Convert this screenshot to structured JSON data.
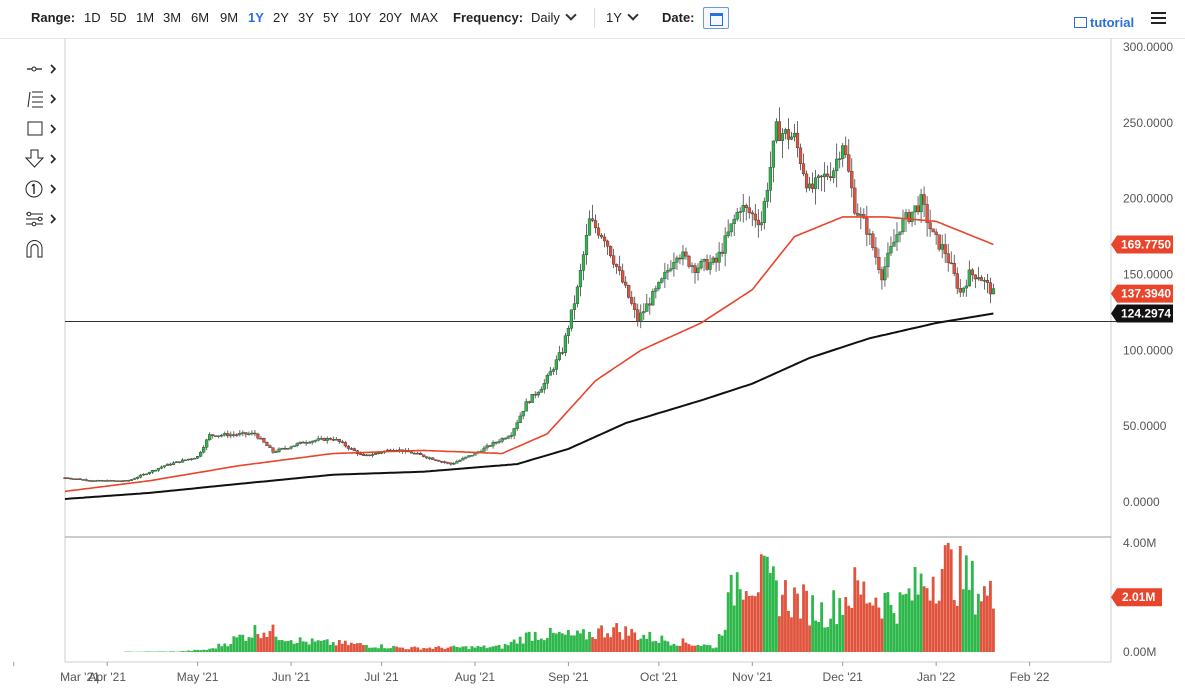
{
  "toolbar": {
    "range_label": "Range:",
    "ranges": [
      "1D",
      "5D",
      "1M",
      "3M",
      "6M",
      "9M",
      "1Y",
      "2Y",
      "3Y",
      "5Y",
      "10Y",
      "20Y",
      "MAX"
    ],
    "active_range": "1Y",
    "frequency_label": "Frequency:",
    "frequency_value": "Daily",
    "period_value": "1Y",
    "date_label": "Date:",
    "tutorial_label": "tutorial"
  },
  "drawing_tools": [
    "line-tool-icon",
    "fibonacci-tool-icon",
    "rectangle-tool-icon",
    "arrow-down-tool-icon",
    "number-marker-icon",
    "pattern-tool-icon",
    "magnet-icon"
  ],
  "colors": {
    "up": "#2eb84b",
    "down": "#e0533d",
    "sma_fast": "#e8452c",
    "sma_slow": "#111111",
    "axis": "#555555"
  },
  "chart_data": {
    "type": "candlestick",
    "price_axis": {
      "min": 0,
      "max": 300,
      "ticks": [
        "0.0000",
        "50.0000",
        "100.0000",
        "150.0000",
        "200.0000",
        "250.0000",
        "300.0000"
      ]
    },
    "x_axis": {
      "ticks": [
        "Mar '21",
        "Apr '21",
        "May '21",
        "Jun '21",
        "Jul '21",
        "Aug '21",
        "Sep '21",
        "Oct '21",
        "Nov '21",
        "Dec '21",
        "Jan '22",
        "Feb '22"
      ],
      "range": [
        "2021-03-18",
        "2022-02-28"
      ]
    },
    "horizontal_line": 119,
    "badges": [
      {
        "label": "169.7750",
        "value": 169.775,
        "color": "#e8452c"
      },
      {
        "label": "137.3940",
        "value": 137.394,
        "color": "#e8452c"
      },
      {
        "label": "124.2974",
        "value": 124.2974,
        "color": "#111111"
      }
    ],
    "price_keypoints": [
      [
        "2021-03-18",
        16
      ],
      [
        "2021-03-28",
        14
      ],
      [
        "2021-04-08",
        14
      ],
      [
        "2021-04-20",
        24
      ],
      [
        "2021-05-01",
        30
      ],
      [
        "2021-05-05",
        44
      ],
      [
        "2021-05-20",
        45
      ],
      [
        "2021-05-26",
        33
      ],
      [
        "2021-06-06",
        40
      ],
      [
        "2021-06-15",
        42
      ],
      [
        "2021-06-25",
        30
      ],
      [
        "2021-07-05",
        35
      ],
      [
        "2021-07-12",
        32
      ],
      [
        "2021-07-24",
        25
      ],
      [
        "2021-08-01",
        32
      ],
      [
        "2021-08-13",
        45
      ],
      [
        "2021-08-18",
        65
      ],
      [
        "2021-08-24",
        78
      ],
      [
        "2021-08-30",
        100
      ],
      [
        "2021-09-04",
        140
      ],
      [
        "2021-09-08",
        185
      ],
      [
        "2021-09-13",
        175
      ],
      [
        "2021-09-20",
        140
      ],
      [
        "2021-09-24",
        120
      ],
      [
        "2021-10-02",
        145
      ],
      [
        "2021-10-07",
        165
      ],
      [
        "2021-10-13",
        155
      ],
      [
        "2021-10-20",
        158
      ],
      [
        "2021-10-28",
        195
      ],
      [
        "2021-11-04",
        185
      ],
      [
        "2021-11-09",
        245
      ],
      [
        "2021-11-15",
        240
      ],
      [
        "2021-11-20",
        205
      ],
      [
        "2021-11-28",
        220
      ],
      [
        "2021-12-01",
        238
      ],
      [
        "2021-12-05",
        195
      ],
      [
        "2021-12-09",
        180
      ],
      [
        "2021-12-14",
        150
      ],
      [
        "2021-12-20",
        182
      ],
      [
        "2021-12-27",
        198
      ],
      [
        "2021-12-31",
        175
      ],
      [
        "2022-01-04",
        165
      ],
      [
        "2022-01-09",
        138
      ],
      [
        "2022-01-12",
        150
      ],
      [
        "2022-01-15",
        150
      ],
      [
        "2022-01-20",
        137.4
      ]
    ],
    "sma_fast": [
      [
        "2021-03-18",
        7
      ],
      [
        "2021-04-15",
        14
      ],
      [
        "2021-05-15",
        24
      ],
      [
        "2021-06-15",
        32
      ],
      [
        "2021-07-15",
        34
      ],
      [
        "2021-08-10",
        32
      ],
      [
        "2021-08-25",
        45
      ],
      [
        "2021-09-10",
        80
      ],
      [
        "2021-09-25",
        100
      ],
      [
        "2021-10-15",
        118
      ],
      [
        "2021-11-01",
        140
      ],
      [
        "2021-11-15",
        175
      ],
      [
        "2021-12-01",
        188
      ],
      [
        "2021-12-15",
        188
      ],
      [
        "2022-01-01",
        185
      ],
      [
        "2022-01-20",
        169.8
      ]
    ],
    "sma_slow": [
      [
        "2021-03-18",
        2
      ],
      [
        "2021-04-15",
        6
      ],
      [
        "2021-05-15",
        12
      ],
      [
        "2021-06-15",
        18
      ],
      [
        "2021-07-15",
        20
      ],
      [
        "2021-08-15",
        25
      ],
      [
        "2021-09-01",
        35
      ],
      [
        "2021-09-20",
        52
      ],
      [
        "2021-10-15",
        67
      ],
      [
        "2021-11-01",
        78
      ],
      [
        "2021-11-20",
        95
      ],
      [
        "2021-12-10",
        108
      ],
      [
        "2022-01-01",
        118
      ],
      [
        "2022-01-20",
        124.3
      ]
    ],
    "volume_axis": {
      "ticks": [
        "0.00M",
        "2.01M",
        "4.00M"
      ],
      "max": 4.0
    },
    "volume_badge": {
      "label": "2.01M",
      "value": 2.01,
      "color": "#e8452c"
    },
    "volume_keypoints": [
      [
        "2021-03-18",
        0.0
      ],
      [
        "2021-04-25",
        0.02
      ],
      [
        "2021-05-05",
        0.1
      ],
      [
        "2021-05-22",
        0.9
      ],
      [
        "2021-06-05",
        0.4
      ],
      [
        "2021-06-22",
        0.3
      ],
      [
        "2021-07-10",
        0.15
      ],
      [
        "2021-08-10",
        0.2
      ],
      [
        "2021-08-20",
        0.7
      ],
      [
        "2021-09-05",
        0.6
      ],
      [
        "2021-09-15",
        0.9
      ],
      [
        "2021-10-01",
        0.5
      ],
      [
        "2021-10-20",
        0.2
      ],
      [
        "2021-10-28",
        3.3
      ],
      [
        "2021-11-10",
        2.3
      ],
      [
        "2021-11-25",
        1.5
      ],
      [
        "2021-12-05",
        2.4
      ],
      [
        "2021-12-20",
        1.8
      ],
      [
        "2022-01-03",
        3.4
      ],
      [
        "2022-01-20",
        2.0
      ]
    ]
  }
}
